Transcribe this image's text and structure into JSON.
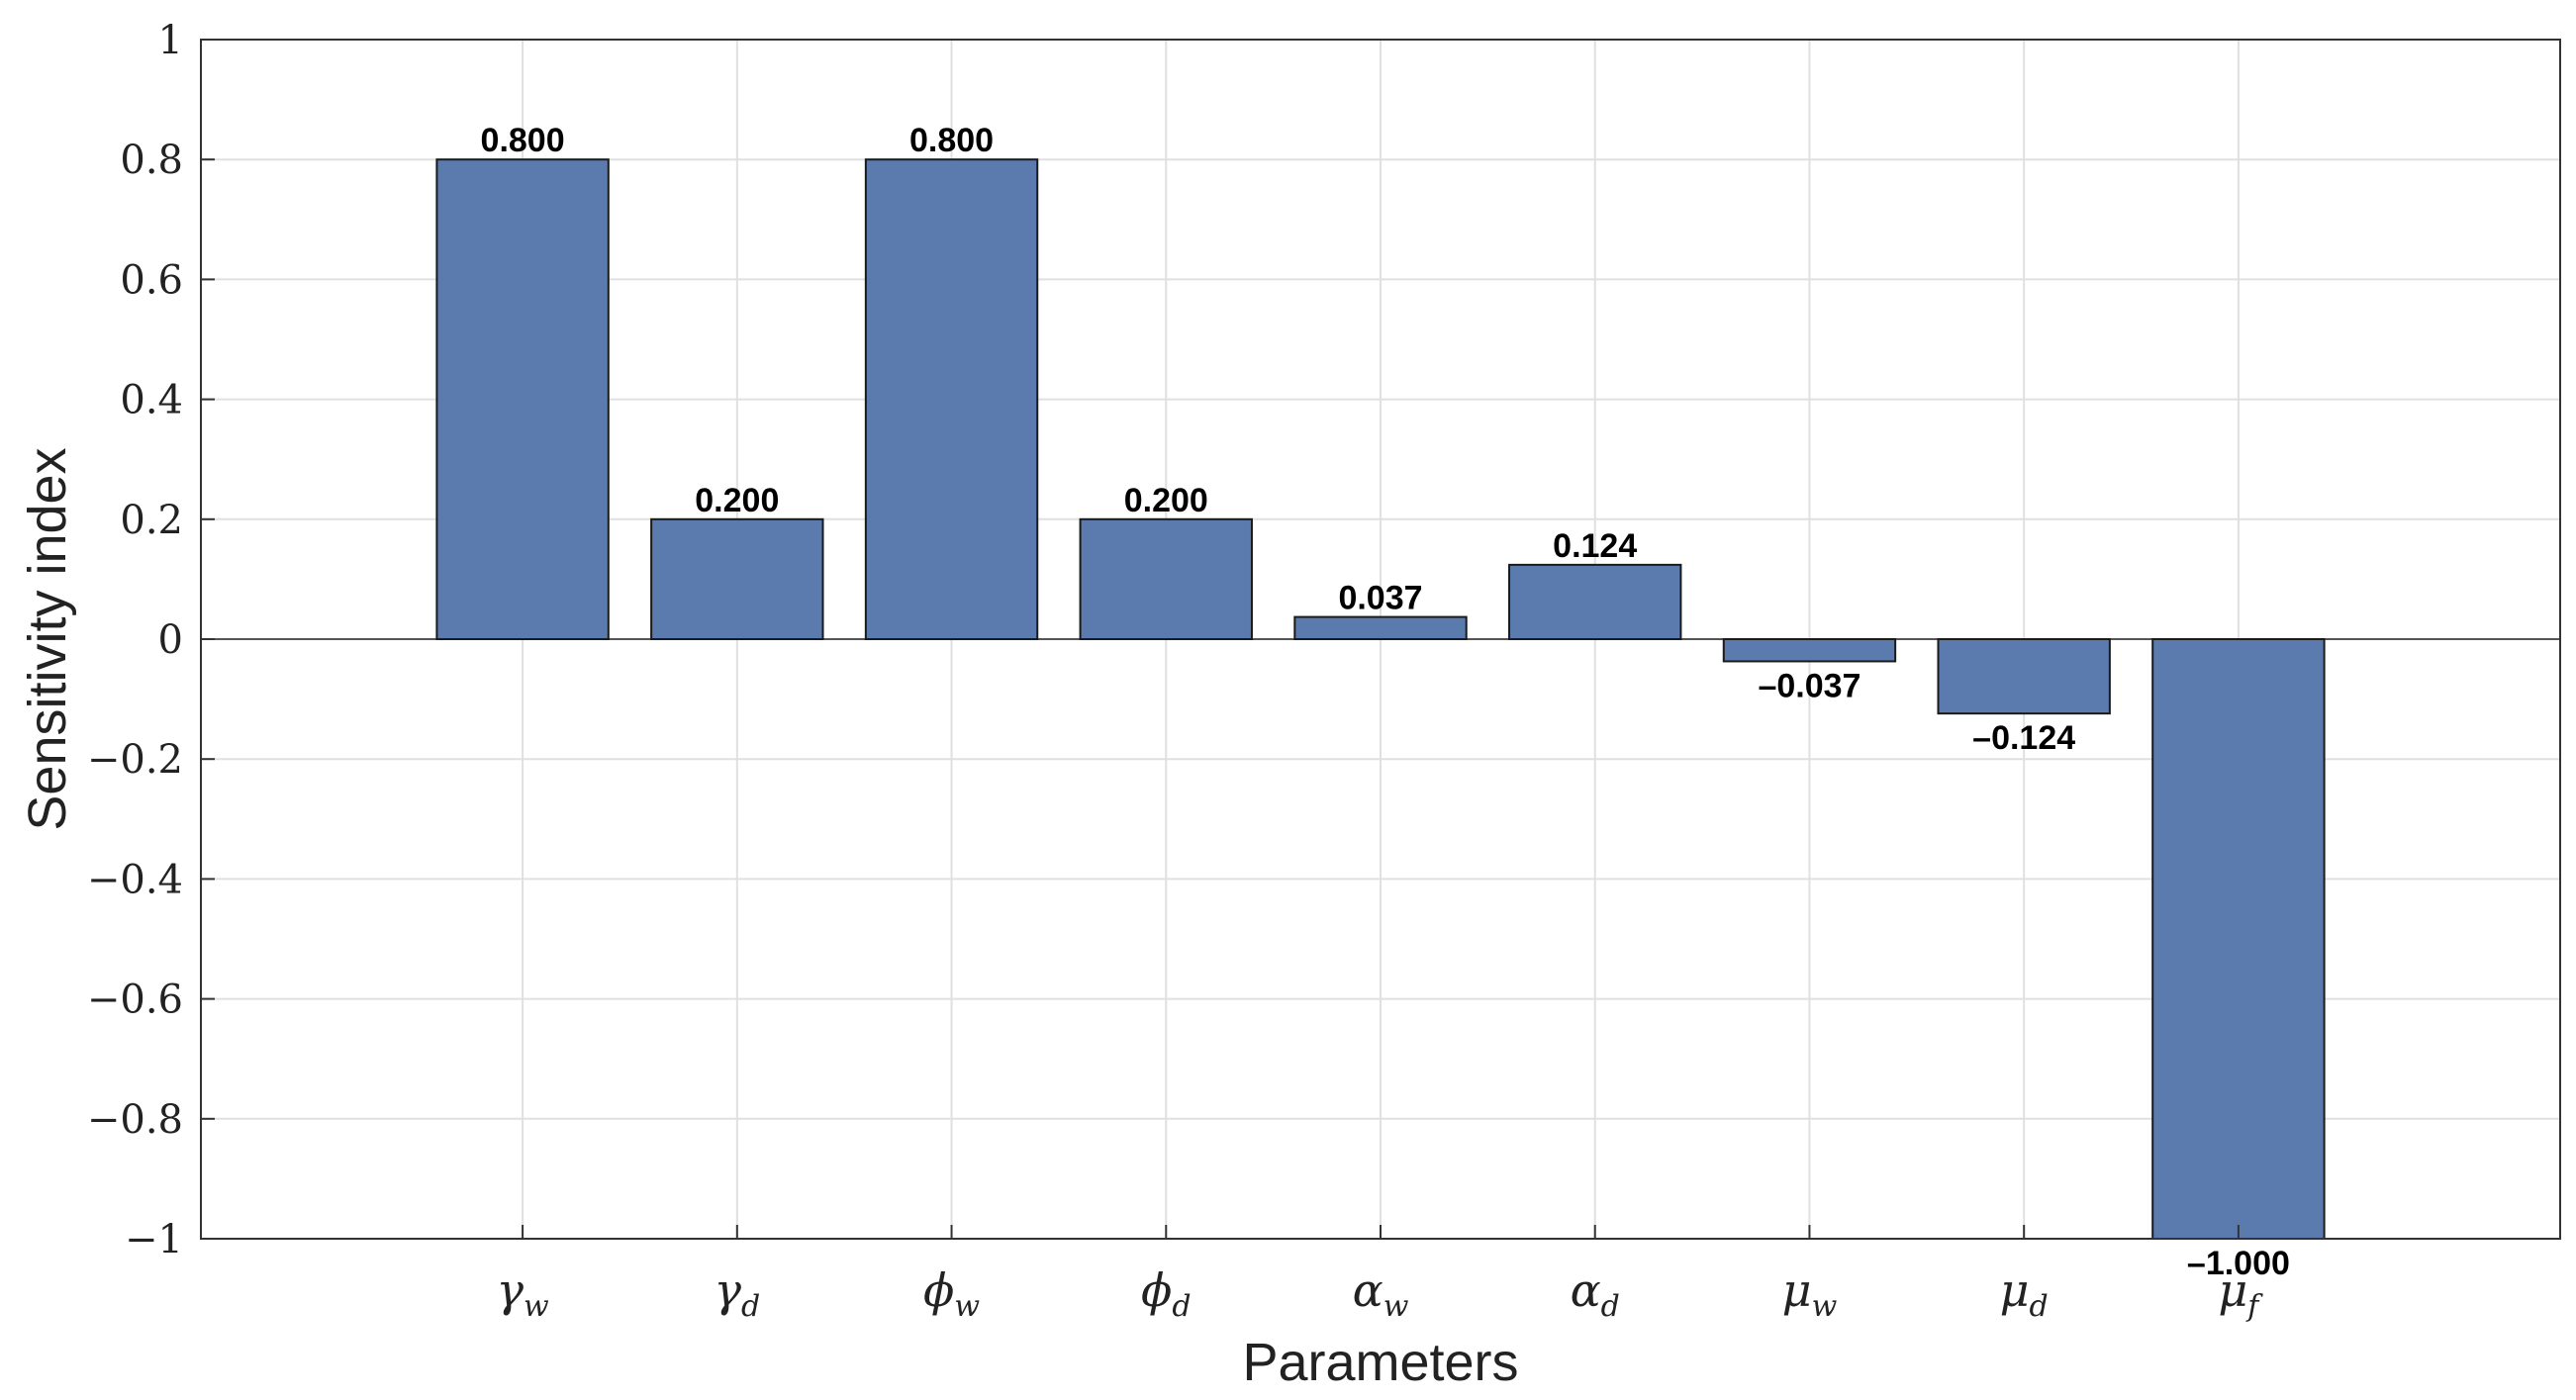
{
  "chart_data": {
    "type": "bar",
    "title": "",
    "xlabel": "Parameters",
    "ylabel": "Sensitivity index",
    "ylim": [
      -1,
      1
    ],
    "yticks": [
      -1,
      -0.8,
      -0.6,
      -0.4,
      -0.2,
      0,
      0.2,
      0.4,
      0.6,
      0.8,
      1
    ],
    "ytick_labels": [
      "−1",
      "−0.8",
      "−0.6",
      "−0.4",
      "−0.2",
      "0",
      "0.2",
      "0.4",
      "0.6",
      "0.8",
      "1"
    ],
    "grid": true,
    "categories": [
      {
        "base": "γ",
        "sub": "w"
      },
      {
        "base": "γ",
        "sub": "d"
      },
      {
        "base": "ϕ",
        "sub": "w"
      },
      {
        "base": "ϕ",
        "sub": "d"
      },
      {
        "base": "α",
        "sub": "w"
      },
      {
        "base": "α",
        "sub": "d"
      },
      {
        "base": "μ",
        "sub": "w"
      },
      {
        "base": "μ",
        "sub": "d"
      },
      {
        "base": "μ",
        "sub": "f"
      }
    ],
    "values": [
      0.8,
      0.2,
      0.8,
      0.2,
      0.037,
      0.124,
      -0.037,
      -0.124,
      -1.0
    ],
    "data_labels": [
      "0.800",
      "0.200",
      "0.800",
      "0.200",
      "0.037",
      "0.124",
      "–0.037",
      "–0.124",
      "–1.000"
    ],
    "colors": {
      "bar": "#5b7baf",
      "bar_edge": "#1a1a1a",
      "grid": "#e0e0e0",
      "axis": "#333333"
    }
  }
}
